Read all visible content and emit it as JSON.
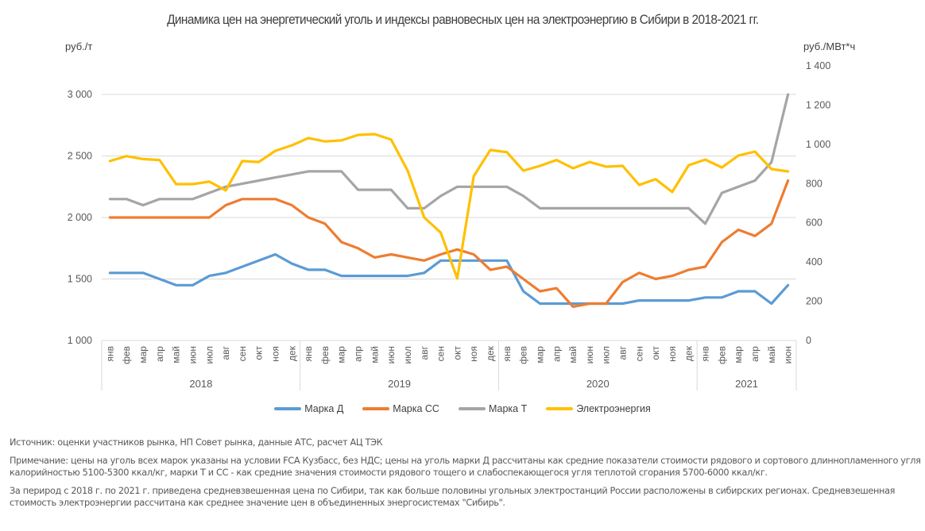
{
  "chart_data": {
    "type": "line",
    "title": "Динамика цен на энергетический уголь и индексы равновесных цен на электроэнергию в Сибири в 2018-2021 гг.",
    "ylabel": "руб./т",
    "y2label": "руб./МВт*ч",
    "ylim": [
      1000,
      3000
    ],
    "y2lim": [
      0,
      1400
    ],
    "yticks": [
      "1 000",
      "1 500",
      "2 000",
      "2 500",
      "3 000"
    ],
    "yticks_values": [
      1000,
      1500,
      2000,
      2500,
      3000
    ],
    "y2ticks": [
      "0",
      "200",
      "400",
      "600",
      "800",
      "1 000",
      "1 200",
      "1 400"
    ],
    "y2ticks_values": [
      0,
      200,
      400,
      600,
      800,
      1000,
      1200,
      1400
    ],
    "grid": true,
    "legend_position": "bottom",
    "years": [
      {
        "label": "2018",
        "months": 12
      },
      {
        "label": "2019",
        "months": 12
      },
      {
        "label": "2020",
        "months": 12
      },
      {
        "label": "2021",
        "months": 6
      }
    ],
    "categories": [
      "янв",
      "фев",
      "мар",
      "апр",
      "май",
      "июн",
      "июл",
      "авг",
      "сен",
      "окт",
      "ноя",
      "дек",
      "янв",
      "фев",
      "мар",
      "апр",
      "май",
      "июн",
      "июл",
      "авг",
      "сен",
      "окт",
      "ноя",
      "дек",
      "янв",
      "фев",
      "мар",
      "апр",
      "май",
      "июн",
      "июл",
      "авг",
      "сен",
      "окт",
      "ноя",
      "дек",
      "янв",
      "фев",
      "мар",
      "апр",
      "май",
      "июн"
    ],
    "series": [
      {
        "name": "Марка Д",
        "axis": "left",
        "color": "#5B9BD5",
        "values": [
          1550,
          1550,
          1550,
          1500,
          1450,
          1450,
          1525,
          1550,
          1600,
          1650,
          1700,
          1625,
          1575,
          1575,
          1525,
          1525,
          1525,
          1525,
          1525,
          1550,
          1650,
          1650,
          1650,
          1650,
          1650,
          1400,
          1300,
          1300,
          1300,
          1300,
          1300,
          1300,
          1325,
          1325,
          1325,
          1325,
          1350,
          1350,
          1400,
          1400,
          1300,
          1450
        ]
      },
      {
        "name": "Марка СС",
        "axis": "left",
        "color": "#ED7D31",
        "values": [
          2000,
          2000,
          2000,
          2000,
          2000,
          2000,
          2000,
          2100,
          2150,
          2150,
          2150,
          2100,
          2000,
          1950,
          1800,
          1750,
          1675,
          1700,
          1675,
          1650,
          1700,
          1740,
          1700,
          1575,
          1600,
          1500,
          1400,
          1425,
          1275,
          1300,
          1300,
          1475,
          1550,
          1500,
          1525,
          1575,
          1600,
          1800,
          1900,
          1850,
          1950,
          2300
        ]
      },
      {
        "name": "Марка Т",
        "axis": "left",
        "color": "#A5A5A5",
        "values": [
          2150,
          2150,
          2100,
          2150,
          2150,
          2150,
          2200,
          2250,
          2275,
          2300,
          2325,
          2350,
          2375,
          2375,
          2375,
          2225,
          2225,
          2225,
          2075,
          2075,
          2175,
          2250,
          2250,
          2250,
          2250,
          2175,
          2075,
          2075,
          2075,
          2075,
          2075,
          2075,
          2075,
          2075,
          2075,
          2075,
          1950,
          2200,
          2250,
          2300,
          2450,
          3000
        ]
      },
      {
        "name": "Электроэнергия",
        "axis": "right",
        "color": "#FFC000",
        "values": [
          915,
          940,
          925,
          920,
          797,
          797,
          810,
          765,
          915,
          910,
          967,
          995,
          1032,
          1015,
          1020,
          1048,
          1052,
          1024,
          866,
          627,
          550,
          316,
          838,
          971,
          960,
          866,
          890,
          920,
          878,
          910,
          886,
          890,
          793,
          822,
          757,
          894,
          922,
          882,
          943,
          963,
          874,
          862
        ]
      }
    ]
  },
  "notes": {
    "source": "Источник: оценки участников рынка, НП Совет рынка, данные АТС, расчет АЦ ТЭК",
    "remark": "Примечание: цены на уголь всех марок указаны на условии FCA Кузбасс, без НДС; цены на уголь марки Д рассчитаны как средние показатели стоимости рядового и сортового длиннопламенного угля калорийностью 5100-5300 ккал/кг, марки Т и СС - как средние значения стоимости рядового тощего и слабоспекающегося угля теплотой сгорания 5700-6000 ккал/кг.",
    "period": "За перирод с 2018 г. по 2021 г. приведена средневзвешенная цена по Сибири, так как больше половины угольных электростанций России расположены в сибирских регионах. Средневзешенная стоимость электроэнергии рассчитана как среднее значение цен в объединенных энергосистемах \"Сибирь\"."
  }
}
